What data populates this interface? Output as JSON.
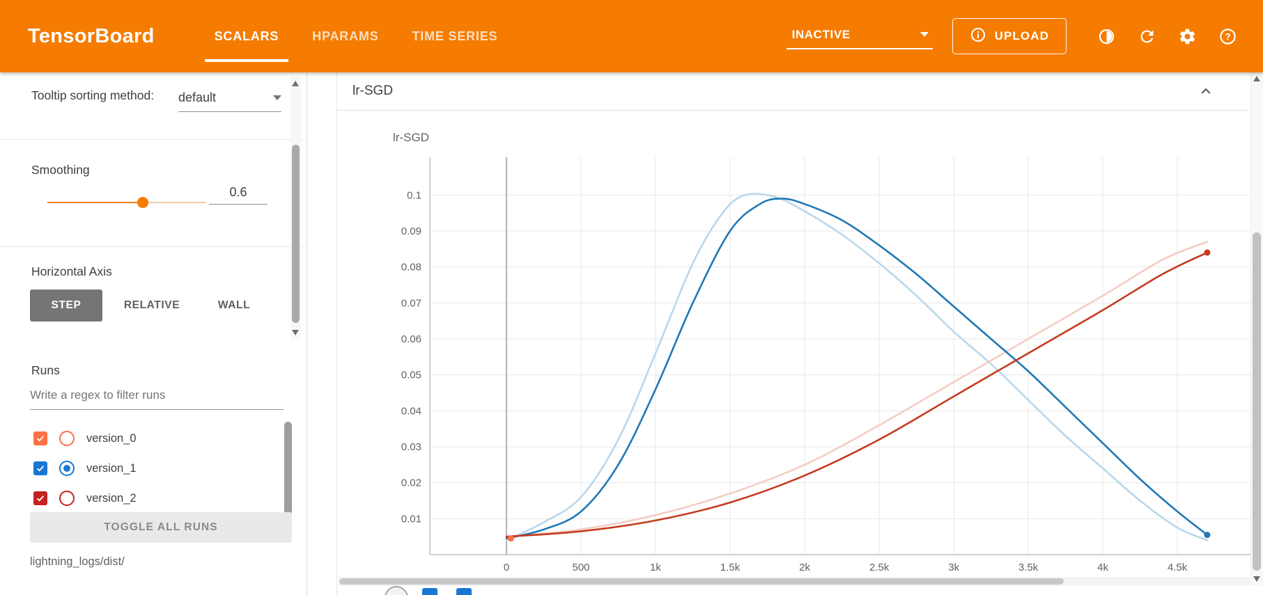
{
  "header": {
    "title": "TensorBoard",
    "tabs": [
      {
        "label": "SCALARS",
        "active": true
      },
      {
        "label": "HPARAMS",
        "active": false
      },
      {
        "label": "TIME SERIES",
        "active": false
      }
    ],
    "status": "INACTIVE",
    "upload": "UPLOAD",
    "bar_color": "#f57c00"
  },
  "sidebar": {
    "tooltip_sorting_label": "Tooltip sorting method:",
    "tooltip_sorting_value": "default",
    "smoothing_label": "Smoothing",
    "smoothing_value": "0.6",
    "horizontal_axis_label": "Horizontal Axis",
    "axis_options": [
      {
        "label": "STEP",
        "selected": true
      },
      {
        "label": "RELATIVE",
        "selected": false
      },
      {
        "label": "WALL",
        "selected": false
      }
    ],
    "runs_label": "Runs",
    "filter_placeholder": "Write a regex to filter runs",
    "runs": [
      {
        "name": "version_0",
        "color": "#ff7043",
        "checked": true,
        "selected_radio": false
      },
      {
        "name": "version_1",
        "color": "#1976d2",
        "checked": true,
        "selected_radio": true
      },
      {
        "name": "version_2",
        "color": "#c5221f",
        "checked": true,
        "selected_radio": false
      }
    ],
    "toggle_all": "TOGGLE ALL RUNS",
    "log_path": "lightning_logs/dist/"
  },
  "main": {
    "card_title": "lr-SGD"
  },
  "chart_data": {
    "type": "line",
    "title": "lr-SGD",
    "xlim": [
      -514,
      5121
    ],
    "ylim": [
      0,
      0.1105
    ],
    "grid": true,
    "zero_line_x": 0,
    "x_ticks": [
      {
        "v": 0,
        "label": "0"
      },
      {
        "v": 500,
        "label": "500"
      },
      {
        "v": 1000,
        "label": "1k"
      },
      {
        "v": 1500,
        "label": "1.5k"
      },
      {
        "v": 2000,
        "label": "2k"
      },
      {
        "v": 2500,
        "label": "2.5k"
      },
      {
        "v": 3000,
        "label": "3k"
      },
      {
        "v": 3500,
        "label": "3.5k"
      },
      {
        "v": 4000,
        "label": "4k"
      },
      {
        "v": 4500,
        "label": "4.5k"
      }
    ],
    "y_ticks": [
      {
        "v": 0.01,
        "label": "0.01"
      },
      {
        "v": 0.02,
        "label": "0.02"
      },
      {
        "v": 0.03,
        "label": "0.03"
      },
      {
        "v": 0.04,
        "label": "0.04"
      },
      {
        "v": 0.05,
        "label": "0.05"
      },
      {
        "v": 0.06,
        "label": "0.06"
      },
      {
        "v": 0.07,
        "label": "0.07"
      },
      {
        "v": 0.08,
        "label": "0.08"
      },
      {
        "v": 0.09,
        "label": "0.09"
      },
      {
        "v": 0.1,
        "label": "0.1"
      }
    ],
    "series": [
      {
        "name": "version_0",
        "type": "dot",
        "color": "#ff7043",
        "points": [
          [
            30,
            0.0045
          ]
        ]
      },
      {
        "name": "version_1",
        "type": "line",
        "color": "#2077b4",
        "raw_color": "#b9d7ec",
        "end_dot": true,
        "raw": [
          [
            0,
            0.004
          ],
          [
            250,
            0.009
          ],
          [
            500,
            0.016
          ],
          [
            750,
            0.032
          ],
          [
            1000,
            0.056
          ],
          [
            1250,
            0.081
          ],
          [
            1450,
            0.095
          ],
          [
            1600,
            0.1
          ],
          [
            1800,
            0.0995
          ],
          [
            2000,
            0.0955
          ],
          [
            2250,
            0.089
          ],
          [
            2500,
            0.081
          ],
          [
            2750,
            0.072
          ],
          [
            3000,
            0.062
          ],
          [
            3250,
            0.053
          ],
          [
            3500,
            0.043
          ],
          [
            3750,
            0.033
          ],
          [
            4000,
            0.024
          ],
          [
            4250,
            0.015
          ],
          [
            4500,
            0.0075
          ],
          [
            4700,
            0.004
          ]
        ],
        "smoothed": [
          [
            0,
            0.0045
          ],
          [
            250,
            0.007
          ],
          [
            500,
            0.012
          ],
          [
            750,
            0.025
          ],
          [
            1000,
            0.046
          ],
          [
            1250,
            0.07
          ],
          [
            1500,
            0.09
          ],
          [
            1700,
            0.0975
          ],
          [
            1850,
            0.099
          ],
          [
            2000,
            0.0975
          ],
          [
            2250,
            0.093
          ],
          [
            2500,
            0.086
          ],
          [
            2750,
            0.078
          ],
          [
            3000,
            0.069
          ],
          [
            3250,
            0.06
          ],
          [
            3500,
            0.051
          ],
          [
            3750,
            0.041
          ],
          [
            4000,
            0.031
          ],
          [
            4250,
            0.021
          ],
          [
            4500,
            0.012
          ],
          [
            4700,
            0.0055
          ]
        ]
      },
      {
        "name": "version_2",
        "type": "line",
        "color": "#c5391e",
        "raw_color": "#f3cdc3",
        "end_dot": true,
        "raw": [
          [
            0,
            0.005
          ],
          [
            500,
            0.007
          ],
          [
            1000,
            0.011
          ],
          [
            1500,
            0.017
          ],
          [
            2000,
            0.025
          ],
          [
            2500,
            0.036
          ],
          [
            3000,
            0.048
          ],
          [
            3500,
            0.06
          ],
          [
            4000,
            0.072
          ],
          [
            4400,
            0.082
          ],
          [
            4700,
            0.087
          ]
        ],
        "smoothed": [
          [
            0,
            0.005
          ],
          [
            500,
            0.0065
          ],
          [
            1000,
            0.0095
          ],
          [
            1500,
            0.0145
          ],
          [
            2000,
            0.022
          ],
          [
            2500,
            0.032
          ],
          [
            3000,
            0.044
          ],
          [
            3500,
            0.056
          ],
          [
            4000,
            0.068
          ],
          [
            4400,
            0.078
          ],
          [
            4700,
            0.084
          ]
        ]
      }
    ]
  }
}
